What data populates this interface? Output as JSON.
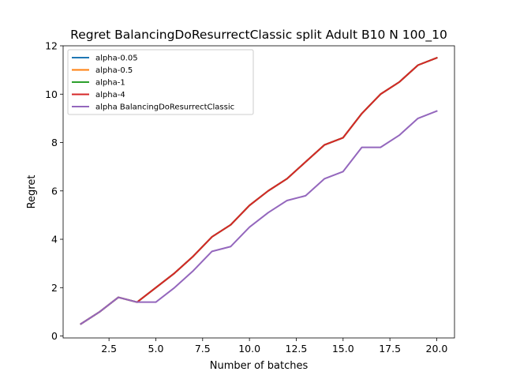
{
  "chart_data": {
    "type": "line",
    "title": "Regret BalancingDoResurrectClassic split Adult B10 N 100_10",
    "xlabel": "Number of batches",
    "ylabel": "Regret",
    "xlim": [
      0.05,
      20.95
    ],
    "ylim": [
      -0.08,
      12.0
    ],
    "xticks": [
      2.5,
      5.0,
      7.5,
      10.0,
      12.5,
      15.0,
      17.5,
      20.0
    ],
    "xtick_labels": [
      "2.5",
      "5.0",
      "7.5",
      "10.0",
      "12.5",
      "15.0",
      "17.5",
      "20.0"
    ],
    "yticks": [
      0,
      2,
      4,
      6,
      8,
      10,
      12
    ],
    "ytick_labels": [
      "0",
      "2",
      "4",
      "6",
      "8",
      "10",
      "12"
    ],
    "grid": false,
    "legend_position": "top-left",
    "x": [
      1,
      2,
      3,
      4,
      5,
      6,
      7,
      8,
      9,
      10,
      11,
      12,
      13,
      14,
      15,
      16,
      17,
      18,
      19,
      20
    ],
    "series": [
      {
        "name": "alpha-0.05",
        "color": "#1f77b4",
        "values": [
          0.5,
          1.0,
          1.6,
          1.4,
          2.0,
          2.6,
          3.3,
          4.1,
          4.6,
          5.4,
          6.0,
          6.5,
          7.2,
          7.9,
          8.2,
          9.2,
          10.0,
          10.5,
          11.2,
          11.5
        ]
      },
      {
        "name": "alpha-0.5",
        "color": "#ff7f0e",
        "values": [
          0.5,
          1.0,
          1.6,
          1.4,
          2.0,
          2.6,
          3.3,
          4.1,
          4.6,
          5.4,
          6.0,
          6.5,
          7.2,
          7.9,
          8.2,
          9.2,
          10.0,
          10.5,
          11.2,
          11.5
        ]
      },
      {
        "name": "alpha-1",
        "color": "#2ca02c",
        "values": [
          0.5,
          1.0,
          1.6,
          1.4,
          2.0,
          2.6,
          3.3,
          4.1,
          4.6,
          5.4,
          6.0,
          6.5,
          7.2,
          7.9,
          8.2,
          9.2,
          10.0,
          10.5,
          11.2,
          11.5
        ]
      },
      {
        "name": "alpha-4",
        "color": "#d62728",
        "values": [
          0.5,
          1.0,
          1.6,
          1.4,
          2.0,
          2.6,
          3.3,
          4.1,
          4.6,
          5.4,
          6.0,
          6.5,
          7.2,
          7.9,
          8.2,
          9.2,
          10.0,
          10.5,
          11.2,
          11.5
        ]
      },
      {
        "name": "alpha BalancingDoResurrectClassic",
        "color": "#9467bd",
        "values": [
          0.5,
          1.0,
          1.6,
          1.4,
          1.4,
          2.0,
          2.7,
          3.5,
          3.7,
          4.5,
          5.1,
          5.6,
          5.8,
          6.5,
          6.8,
          7.8,
          7.8,
          8.3,
          9.0,
          9.3
        ]
      }
    ]
  }
}
